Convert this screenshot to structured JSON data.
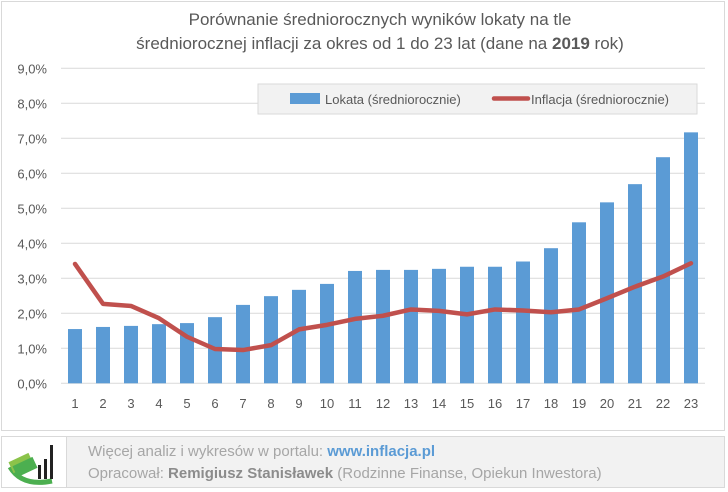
{
  "chart_data": {
    "type": "bar",
    "title_line1": "Porównanie średniorocznych wyników lokaty na tle",
    "title_line2_pre": "średniorocznej inflacji za okres od 1 do 23 lat (dane na ",
    "title_year": "2019",
    "title_line2_post": " rok)",
    "xlabel": "",
    "ylabel": "",
    "ylim": [
      0,
      9
    ],
    "yticks": [
      "0,0%",
      "1,0%",
      "2,0%",
      "3,0%",
      "4,0%",
      "5,0%",
      "6,0%",
      "7,0%",
      "8,0%",
      "9,0%"
    ],
    "categories": [
      "1",
      "2",
      "3",
      "4",
      "5",
      "6",
      "7",
      "8",
      "9",
      "10",
      "11",
      "12",
      "13",
      "14",
      "15",
      "16",
      "17",
      "18",
      "19",
      "20",
      "21",
      "22",
      "23"
    ],
    "grid": true,
    "legend_position": "top-right",
    "series": [
      {
        "name": "Lokata (średniorocznie)",
        "type": "bar",
        "color": "#5b9bd5",
        "values": [
          1.55,
          1.61,
          1.64,
          1.69,
          1.72,
          1.89,
          2.24,
          2.49,
          2.67,
          2.84,
          3.21,
          3.24,
          3.24,
          3.27,
          3.33,
          3.33,
          3.48,
          3.86,
          4.6,
          5.17,
          5.69,
          6.46,
          7.17
        ]
      },
      {
        "name": "Inflacja (średniorocznie)",
        "type": "line",
        "color": "#c0504d",
        "values": [
          3.41,
          2.27,
          2.21,
          1.86,
          1.33,
          0.98,
          0.95,
          1.09,
          1.54,
          1.67,
          1.84,
          1.93,
          2.11,
          2.07,
          1.97,
          2.11,
          2.08,
          2.03,
          2.11,
          2.43,
          2.76,
          3.05,
          3.43
        ]
      }
    ]
  },
  "footer": {
    "line1_text": "Więcej analiz i wykresów w portalu: ",
    "line1_link": "www.inflacja.pl",
    "line2_prefix": "Opracował: ",
    "line2_author": "Remigiusz Stanisławek",
    "line2_suffix": " (Rodzinne Finanse, Opiekun Inwestora)"
  }
}
